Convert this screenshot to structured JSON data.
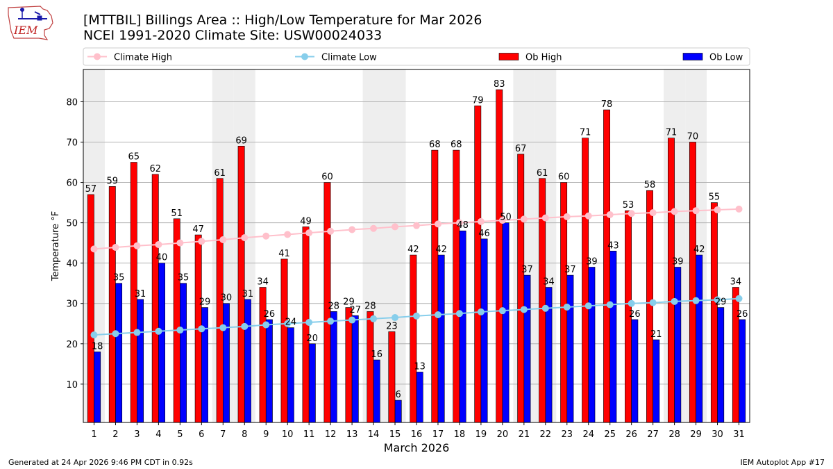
{
  "header": {
    "title_line1": "[MTTBIL] Billings Area :: High/Low Temperature for Mar 2026",
    "title_line2": "NCEI 1991-2020 Climate Site: USW00024033",
    "logo_text": "IEM"
  },
  "footer": {
    "generated": "Generated at 24 Apr 2026 9:46 PM CDT in 0.92s",
    "app": "IEM Autoplot App #17"
  },
  "colors": {
    "ob_high": "#ff0000",
    "ob_low": "#0000ff",
    "climate_high": "#ffc0cb",
    "climate_low": "#87ceeb",
    "weekend_band": "#eeeeee",
    "grid": "#b0b0b0"
  },
  "chart_data": {
    "type": "bar",
    "xlabel": "March 2026",
    "ylabel": "Temperature °F",
    "ylim": [
      0.5,
      88
    ],
    "yticks": [
      10,
      20,
      30,
      40,
      50,
      60,
      70,
      80
    ],
    "grid": "horizontal",
    "legend_position": "top",
    "shaded_days": [
      1,
      7,
      8,
      14,
      15,
      21,
      22,
      28,
      29
    ],
    "categories": [
      "1",
      "2",
      "3",
      "4",
      "5",
      "6",
      "7",
      "8",
      "9",
      "10",
      "11",
      "12",
      "13",
      "14",
      "15",
      "16",
      "17",
      "18",
      "19",
      "20",
      "21",
      "22",
      "23",
      "24",
      "25",
      "26",
      "27",
      "28",
      "29",
      "30",
      "31"
    ],
    "series": [
      {
        "name": "Ob High",
        "kind": "bar",
        "values": [
          57,
          59,
          65,
          62,
          51,
          47,
          61,
          69,
          34,
          41,
          49,
          60,
          29,
          28,
          23,
          42,
          68,
          68,
          79,
          83,
          67,
          61,
          60,
          71,
          78,
          53,
          58,
          71,
          70,
          55,
          34
        ]
      },
      {
        "name": "Ob Low",
        "kind": "bar",
        "values": [
          18,
          35,
          31,
          40,
          35,
          29,
          30,
          31,
          26,
          24,
          20,
          28,
          27,
          16,
          6,
          13,
          42,
          48,
          46,
          50,
          37,
          34,
          37,
          39,
          43,
          26,
          21,
          39,
          42,
          29,
          26
        ]
      },
      {
        "name": "Climate High",
        "kind": "line",
        "values": [
          43.5,
          43.9,
          44.3,
          44.6,
          45.0,
          45.4,
          45.8,
          46.3,
          46.7,
          47.1,
          47.5,
          47.9,
          48.3,
          48.6,
          49.0,
          49.3,
          49.7,
          50.0,
          50.3,
          50.6,
          50.9,
          51.2,
          51.5,
          51.7,
          52.0,
          52.3,
          52.5,
          52.8,
          53.0,
          53.2,
          53.4
        ]
      },
      {
        "name": "Climate Low",
        "kind": "line",
        "values": [
          22.2,
          22.5,
          22.8,
          23.1,
          23.4,
          23.7,
          24.0,
          24.3,
          24.7,
          25.0,
          25.3,
          25.6,
          25.9,
          26.2,
          26.5,
          26.9,
          27.2,
          27.5,
          27.9,
          28.2,
          28.5,
          28.8,
          29.1,
          29.4,
          29.7,
          30.0,
          30.2,
          30.5,
          30.7,
          30.9,
          31.2
        ]
      }
    ]
  }
}
